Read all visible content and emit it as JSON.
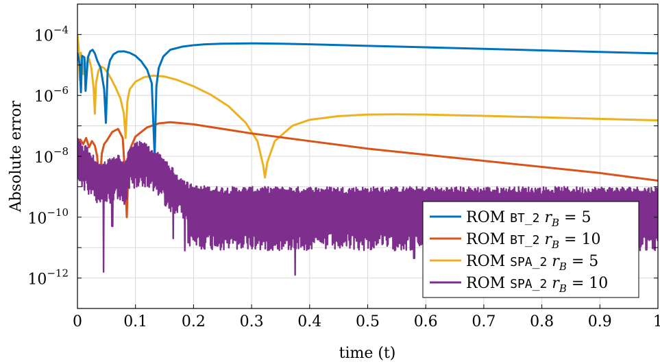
{
  "chart_data": {
    "type": "line",
    "title": "",
    "xlabel": "time (t)",
    "ylabel": "Absolute error",
    "xlim": [
      0,
      1
    ],
    "ylim_log10": [
      -13,
      -3
    ],
    "yscale": "log",
    "grid": true,
    "legend_position": "bottom-right",
    "x_ticks": [
      "0",
      "0.1",
      "0.2",
      "0.3",
      "0.4",
      "0.5",
      "0.6",
      "0.7",
      "0.8",
      "0.9",
      "1"
    ],
    "y_ticks": [
      {
        "base": "10",
        "exp": "−4",
        "log10": -4
      },
      {
        "base": "10",
        "exp": "−6",
        "log10": -6
      },
      {
        "base": "10",
        "exp": "−8",
        "log10": -8
      },
      {
        "base": "10",
        "exp": "−10",
        "log10": -10
      },
      {
        "base": "10",
        "exp": "−12",
        "log10": -12
      }
    ],
    "series": [
      {
        "name": "ROM BT_2 r_B = 5",
        "legend": {
          "prefix": "ROM ",
          "method": "BT_2",
          "sub": "B",
          "value": "= 5"
        },
        "color": "#0072BD",
        "x": [
          0.0,
          0.004,
          0.006,
          0.008,
          0.012,
          0.014,
          0.018,
          0.022,
          0.026,
          0.03,
          0.034,
          0.04,
          0.046,
          0.049,
          0.052,
          0.056,
          0.062,
          0.07,
          0.08,
          0.09,
          0.1,
          0.11,
          0.12,
          0.128,
          0.133,
          0.136,
          0.14,
          0.148,
          0.16,
          0.18,
          0.2,
          0.22,
          0.25,
          0.3,
          0.35,
          0.4,
          0.5,
          0.6,
          0.7,
          0.8,
          0.9,
          1.0
        ],
        "log10_y": [
          -4.6,
          -5.0,
          -5.9,
          -4.7,
          -4.75,
          -5.85,
          -4.75,
          -4.55,
          -4.5,
          -4.62,
          -4.85,
          -5.1,
          -5.8,
          -6.9,
          -5.2,
          -4.85,
          -4.65,
          -4.56,
          -4.55,
          -4.6,
          -4.7,
          -4.88,
          -5.15,
          -5.6,
          -8.0,
          -5.7,
          -5.1,
          -4.72,
          -4.5,
          -4.4,
          -4.35,
          -4.32,
          -4.3,
          -4.29,
          -4.3,
          -4.32,
          -4.37,
          -4.42,
          -4.47,
          -4.52,
          -4.57,
          -4.62
        ]
      },
      {
        "name": "ROM BT_2 r_B = 10",
        "legend": {
          "prefix": "ROM ",
          "method": "BT_2",
          "sub": "B",
          "value": "= 10"
        },
        "color": "#D95319",
        "x": [
          0.0,
          0.005,
          0.01,
          0.015,
          0.02,
          0.025,
          0.03,
          0.034,
          0.038,
          0.042,
          0.046,
          0.05,
          0.06,
          0.07,
          0.078,
          0.082,
          0.085,
          0.088,
          0.092,
          0.1,
          0.12,
          0.14,
          0.16,
          0.2,
          0.25,
          0.3,
          0.4,
          0.5,
          0.6,
          0.7,
          0.8,
          0.9,
          1.0
        ],
        "log10_y": [
          -7.6,
          -7.45,
          -7.6,
          -7.4,
          -7.7,
          -7.5,
          -7.65,
          -8.0,
          -9.0,
          -7.9,
          -7.6,
          -7.5,
          -7.2,
          -7.1,
          -7.4,
          -8.6,
          -10.0,
          -8.3,
          -7.7,
          -7.35,
          -7.05,
          -6.92,
          -6.88,
          -6.95,
          -7.1,
          -7.25,
          -7.5,
          -7.75,
          -7.95,
          -8.15,
          -8.35,
          -8.55,
          -8.8
        ]
      },
      {
        "name": "ROM SPA_2 r_B = 5",
        "legend": {
          "prefix": "ROM ",
          "method": "SPA_2",
          "sub": "B",
          "value": "= 5"
        },
        "color": "#EDB120",
        "x": [
          0.0,
          0.002,
          0.004,
          0.006,
          0.008,
          0.01,
          0.012,
          0.014,
          0.016,
          0.018,
          0.02,
          0.024,
          0.028,
          0.03,
          0.032,
          0.036,
          0.04,
          0.046,
          0.052,
          0.058,
          0.066,
          0.074,
          0.08,
          0.083,
          0.086,
          0.09,
          0.1,
          0.115,
          0.13,
          0.15,
          0.17,
          0.2,
          0.23,
          0.26,
          0.29,
          0.31,
          0.32,
          0.323,
          0.327,
          0.34,
          0.37,
          0.4,
          0.45,
          0.5,
          0.55,
          0.6,
          0.7,
          0.8,
          0.9,
          1.0
        ],
        "log10_y": [
          -4.0,
          -4.4,
          -5.5,
          -4.6,
          -5.0,
          -5.3,
          -4.8,
          -4.95,
          -5.3,
          -4.75,
          -4.8,
          -5.1,
          -5.8,
          -6.6,
          -5.6,
          -5.2,
          -5.05,
          -5.1,
          -5.25,
          -5.45,
          -5.75,
          -6.1,
          -6.6,
          -7.4,
          -6.2,
          -5.8,
          -5.55,
          -5.4,
          -5.35,
          -5.38,
          -5.48,
          -5.7,
          -5.98,
          -6.35,
          -6.9,
          -7.5,
          -8.3,
          -8.7,
          -8.2,
          -7.5,
          -7.0,
          -6.8,
          -6.68,
          -6.63,
          -6.62,
          -6.63,
          -6.67,
          -6.72,
          -6.77,
          -6.82
        ]
      },
      {
        "name": "ROM SPA_2 r_B = 10",
        "legend": {
          "prefix": "ROM ",
          "method": "SPA_2",
          "sub": "B",
          "value": "= 10"
        },
        "color": "#7E2F8E",
        "x": [
          0.0,
          0.005,
          0.01,
          0.015,
          0.02,
          0.03,
          0.04,
          0.05,
          0.06,
          0.07,
          0.08,
          0.09,
          0.1,
          0.11,
          0.12,
          0.13,
          0.14,
          0.15,
          0.16,
          0.17,
          0.18,
          0.19,
          0.2,
          0.25,
          0.3,
          0.35,
          0.4,
          0.45,
          0.5,
          0.55,
          0.6,
          0.65,
          0.7,
          0.75,
          0.8,
          0.85,
          0.9,
          0.95,
          1.0
        ],
        "log10_y": [
          -8.0,
          -8.1,
          -8.3,
          -8.2,
          -8.45,
          -8.6,
          -8.9,
          -8.7,
          -8.6,
          -8.5,
          -8.75,
          -8.3,
          -8.15,
          -8.1,
          -8.2,
          -8.35,
          -8.5,
          -8.7,
          -8.9,
          -9.1,
          -9.3,
          -9.45,
          -9.55,
          -9.6,
          -9.6,
          -9.6,
          -9.6,
          -9.6,
          -9.6,
          -9.6,
          -9.6,
          -9.6,
          -9.6,
          -9.6,
          -9.6,
          -9.6,
          -9.6,
          -9.6,
          -9.6
        ],
        "oscillation_log10_range": [
          0.9,
          1.5
        ],
        "deep_dips": [
          {
            "x": 0.045,
            "log10_y": -11.8
          },
          {
            "x": 0.06,
            "log10_y": -10.3
          },
          {
            "x": 0.165,
            "log10_y": -10.7
          },
          {
            "x": 0.185,
            "log10_y": -11.1
          },
          {
            "x": 0.29,
            "log10_y": -10.6
          },
          {
            "x": 0.375,
            "log10_y": -11.9
          },
          {
            "x": 0.43,
            "log10_y": -10.9
          },
          {
            "x": 0.52,
            "log10_y": -10.7
          },
          {
            "x": 0.58,
            "log10_y": -11.35
          },
          {
            "x": 0.67,
            "log10_y": -10.8
          },
          {
            "x": 0.78,
            "log10_y": -11.2
          },
          {
            "x": 0.92,
            "log10_y": -11.1
          }
        ]
      }
    ]
  }
}
